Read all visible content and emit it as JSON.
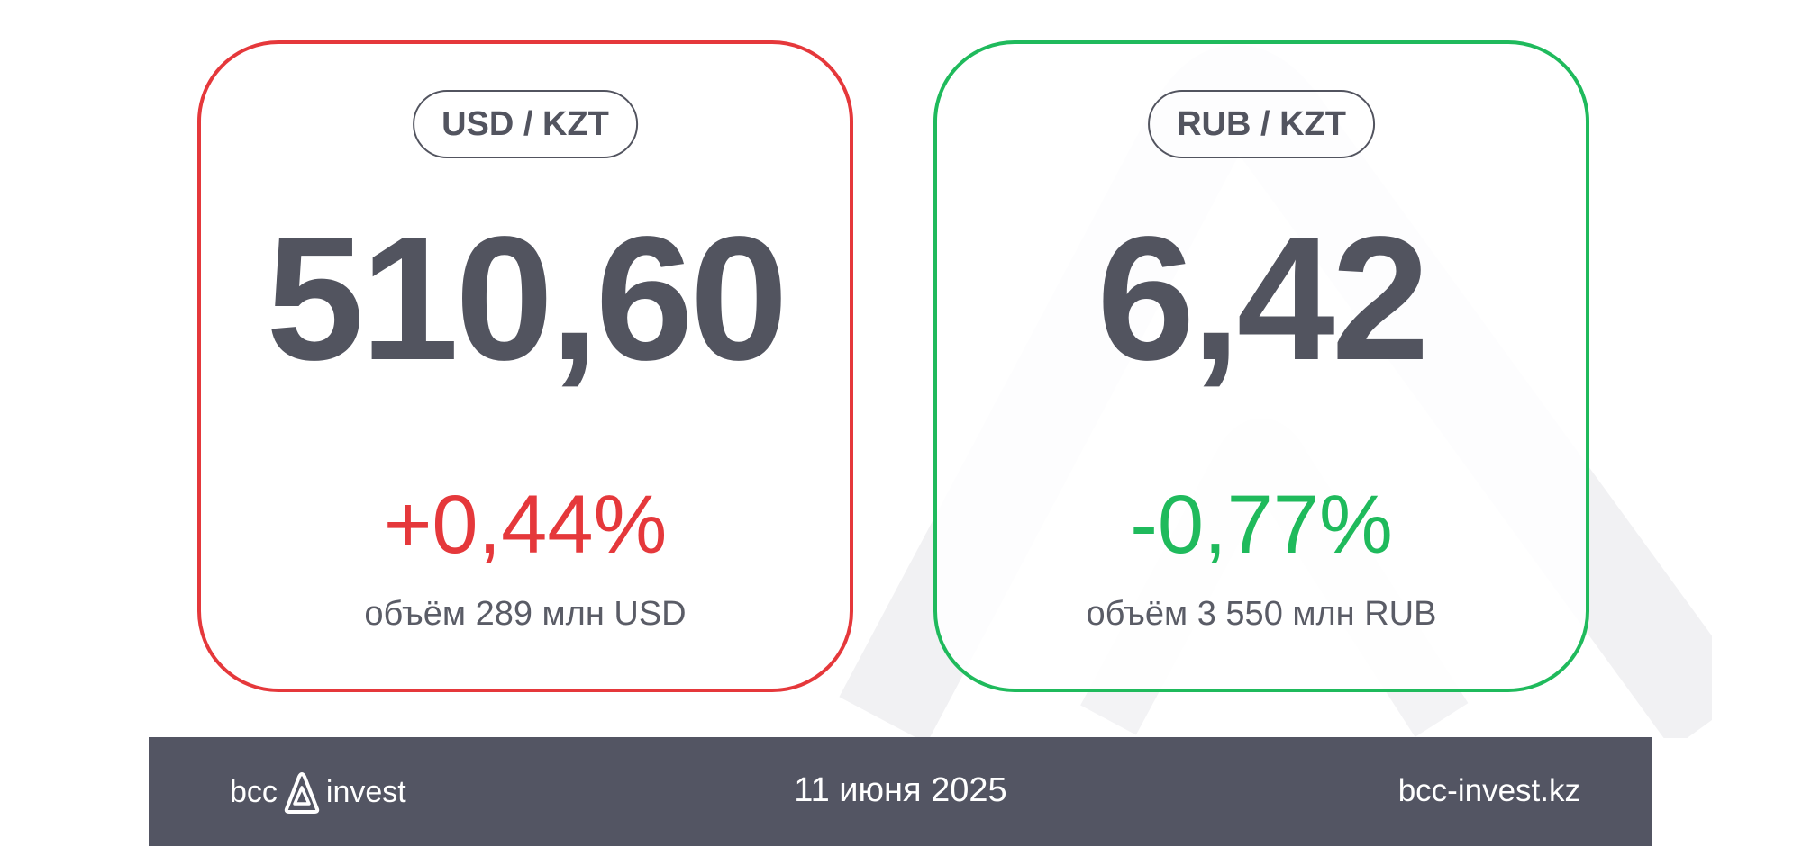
{
  "cards": [
    {
      "pair": "USD / KZT",
      "rate": "510,60",
      "change": "+0,44%",
      "volume": "объём 289 млн USD",
      "border_color": "#e5383b"
    },
    {
      "pair": "RUB / KZT",
      "rate": "6,42",
      "change": "-0,77%",
      "volume": "объём 3 550 млн RUB",
      "border_color": "#1fba5c"
    }
  ],
  "footer": {
    "logo_left": "bcc",
    "logo_right": "invest",
    "date": "11 июня 2025",
    "website": "bcc-invest.kz",
    "background": "#535563"
  }
}
